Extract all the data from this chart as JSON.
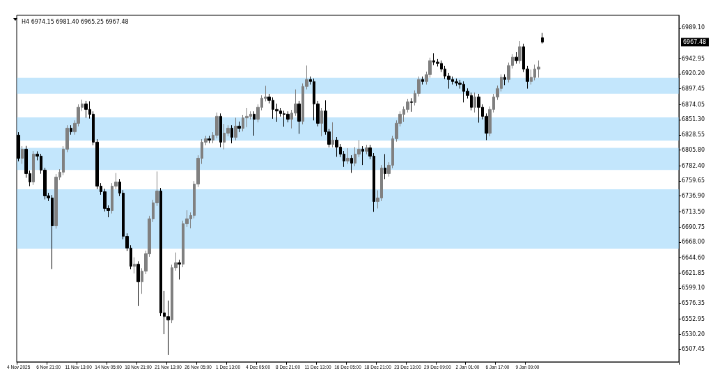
{
  "chart_data": {
    "type": "candlestick",
    "title": "H4 6974.15 6981.40 6965.25 6967.48",
    "categories": [
      "4 Nov 2025",
      null,
      null,
      null,
      null,
      null,
      null,
      null,
      "6 Nov 21:00",
      null,
      null,
      null,
      null,
      null,
      null,
      null,
      "11 Nov 13:00",
      null,
      null,
      null,
      null,
      null,
      null,
      null,
      "14 Nov 05:00",
      null,
      null,
      null,
      null,
      null,
      null,
      null,
      "18 Nov 21:00",
      null,
      null,
      null,
      null,
      null,
      null,
      null,
      "21 Nov 13:00",
      null,
      null,
      null,
      null,
      null,
      null,
      null,
      "26 Nov 05:00",
      null,
      null,
      null,
      null,
      null,
      null,
      null,
      "1 Dec 13:00",
      null,
      null,
      null,
      null,
      null,
      null,
      null,
      "4 Dec 05:00",
      null,
      null,
      null,
      null,
      null,
      null,
      null,
      "8 Dec 21:00",
      null,
      null,
      null,
      null,
      null,
      null,
      null,
      "11 Dec 13:00",
      null,
      null,
      null,
      null,
      null,
      null,
      null,
      "16 Dec 05:00",
      null,
      null,
      null,
      null,
      null,
      null,
      null,
      "18 Dec 21:00",
      null,
      null,
      null,
      null,
      null,
      null,
      null,
      "23 Dec 13:00",
      null,
      null,
      null,
      null,
      null,
      null,
      null,
      "29 Dec 09:00",
      null,
      null,
      null,
      null,
      null,
      null,
      null,
      "2 Jan 01:00",
      null,
      null,
      null,
      null,
      null,
      null,
      null,
      "6 Jan 17:00",
      null,
      null,
      null,
      null,
      null,
      null,
      null,
      "9 Jan 09:00",
      null,
      null,
      null,
      null,
      null,
      null,
      null,
      null,
      null,
      null,
      null,
      null,
      null,
      null,
      null,
      null,
      null,
      null,
      null,
      null,
      null,
      null,
      null,
      null,
      null,
      null,
      null,
      null,
      null,
      null,
      null,
      null,
      null,
      null,
      null,
      null,
      null,
      null,
      null,
      null
    ],
    "ohlc": [
      [
        6828.0,
        6832.5,
        6789.0,
        6793.5
      ],
      [
        6793.5,
        6811.6,
        6785.2,
        6807.1
      ],
      [
        6807.1,
        6812.0,
        6764.3,
        6770.6
      ],
      [
        6770.6,
        6775.1,
        6751.7,
        6758.0
      ],
      [
        6758.0,
        6804.3,
        6753.5,
        6799.8
      ],
      [
        6799.8,
        6803.9,
        6790.4,
        6796.7
      ],
      [
        6796.7,
        6800.2,
        6770.3,
        6775.8
      ],
      [
        6775.8,
        6779.3,
        6731.9,
        6737.2
      ],
      [
        6737.2,
        6741.7,
        6729.5,
        6734.0
      ],
      [
        6734.0,
        6738.5,
        6627.5,
        6692.3
      ],
      [
        6692.3,
        6769.9,
        6688.1,
        6765.4
      ],
      [
        6765.4,
        6777.2,
        6760.9,
        6772.7
      ],
      [
        6772.7,
        6811.6,
        6768.2,
        6807.1
      ],
      [
        6807.1,
        6842.9,
        6802.6,
        6838.4
      ],
      [
        6838.4,
        6842.9,
        6828.7,
        6833.2
      ],
      [
        6833.2,
        6850.3,
        6828.7,
        6845.8
      ],
      [
        6845.8,
        6874.3,
        6841.3,
        6869.8
      ],
      [
        6869.8,
        6881.3,
        6864.3,
        6875.0
      ],
      [
        6875.0,
        6879.5,
        6854.3,
        6866.6
      ],
      [
        6866.6,
        6878.9,
        6852.8,
        6859.3
      ],
      [
        6859.3,
        6863.8,
        6813.1,
        6817.6
      ],
      [
        6817.6,
        6822.1,
        6747.3,
        6751.8
      ],
      [
        6751.8,
        6756.3,
        6738.9,
        6743.4
      ],
      [
        6743.4,
        6747.9,
        6713.9,
        6718.4
      ],
      [
        6718.4,
        6722.9,
        6705.2,
        6715.3
      ],
      [
        6715.3,
        6756.3,
        6710.8,
        6751.8
      ],
      [
        6751.8,
        6771.4,
        6747.3,
        6758.0
      ],
      [
        6758.0,
        6762.5,
        6736.8,
        6741.3
      ],
      [
        6741.3,
        6745.8,
        6672.1,
        6676.6
      ],
      [
        6676.6,
        6681.1,
        6654.4,
        6658.9
      ],
      [
        6658.9,
        6663.4,
        6627.2,
        6631.7
      ],
      [
        6631.7,
        6645.1,
        6621.0,
        6634.8
      ],
      [
        6634.8,
        6639.3,
        6572.2,
        6608.7
      ],
      [
        6608.7,
        6628.9,
        6590.5,
        6624.4
      ],
      [
        6624.4,
        6655.0,
        6619.9,
        6650.5
      ],
      [
        6650.5,
        6707.2,
        6646.0,
        6702.7
      ],
      [
        6702.7,
        6731.2,
        6698.2,
        6726.7
      ],
      [
        6726.7,
        6773.7,
        6722.2,
        6744.5
      ],
      [
        6744.5,
        6749.0,
        6557.3,
        6561.8
      ],
      [
        6561.8,
        6595.0,
        6530.2,
        6556.5
      ],
      [
        6556.5,
        6580.4,
        6499.1,
        6551.3
      ],
      [
        6551.3,
        6634.1,
        6546.8,
        6629.6
      ],
      [
        6629.6,
        6652.4,
        6625.1,
        6636.9
      ],
      [
        6636.9,
        6641.4,
        6612.0,
        6634.8
      ],
      [
        6634.8,
        6699.9,
        6630.3,
        6695.4
      ],
      [
        6695.4,
        6715.6,
        6690.9,
        6702.7
      ],
      [
        6702.7,
        6712.4,
        6688.5,
        6707.9
      ],
      [
        6707.9,
        6759.4,
        6703.4,
        6754.9
      ],
      [
        6754.9,
        6798.0,
        6750.4,
        6793.5
      ],
      [
        6793.5,
        6822.1,
        6785.0,
        6817.6
      ],
      [
        6817.6,
        6827.3,
        6813.1,
        6822.8
      ],
      [
        6822.8,
        6827.3,
        6816.2,
        6820.7
      ],
      [
        6820.7,
        6832.5,
        6816.2,
        6828.0
      ],
      [
        6828.0,
        6862.0,
        6823.5,
        6856.2
      ],
      [
        6856.2,
        6860.7,
        6810.1,
        6817.6
      ],
      [
        6817.6,
        6845.0,
        6806.8,
        6831.1
      ],
      [
        6831.1,
        6842.9,
        6826.6,
        6838.4
      ],
      [
        6838.4,
        6842.9,
        6815.9,
        6824.9
      ],
      [
        6824.9,
        6854.3,
        6820.4,
        6841.6
      ],
      [
        6841.6,
        6848.5,
        6832.6,
        6838.4
      ],
      [
        6838.4,
        6858.6,
        6833.9,
        6854.1
      ],
      [
        6854.1,
        6869.0,
        6840.2,
        6856.2
      ],
      [
        6856.2,
        6863.8,
        6851.7,
        6859.3
      ],
      [
        6859.3,
        6863.8,
        6827.4,
        6852.0
      ],
      [
        6852.0,
        6874.3,
        6847.5,
        6869.8
      ],
      [
        6869.8,
        6887.8,
        6865.3,
        6883.3
      ],
      [
        6883.3,
        6902.0,
        6878.8,
        6885.4
      ],
      [
        6885.4,
        6889.9,
        6875.7,
        6880.2
      ],
      [
        6880.2,
        6884.7,
        6852.5,
        6866.6
      ],
      [
        6866.6,
        6875.4,
        6848.2,
        6864.5
      ],
      [
        6864.5,
        6869.0,
        6855.9,
        6860.4
      ],
      [
        6860.4,
        6864.9,
        6840.9,
        6859.3
      ],
      [
        6859.3,
        6863.8,
        6847.5,
        6852.0
      ],
      [
        6852.0,
        6865.9,
        6838.2,
        6861.4
      ],
      [
        6861.4,
        6896.6,
        6856.9,
        6875.0
      ],
      [
        6875.0,
        6879.5,
        6830.2,
        6848.9
      ],
      [
        6848.9,
        6905.6,
        6844.4,
        6901.1
      ],
      [
        6901.1,
        6932.4,
        6896.6,
        6911.5
      ],
      [
        6911.5,
        6916.0,
        6903.9,
        6908.4
      ],
      [
        6908.4,
        6912.9,
        6850.2,
        6875.0
      ],
      [
        6875.0,
        6879.5,
        6841.3,
        6845.8
      ],
      [
        6845.8,
        6869.0,
        6826.6,
        6864.5
      ],
      [
        6864.5,
        6880.2,
        6828.7,
        6833.2
      ],
      [
        6833.2,
        6837.7,
        6809.9,
        6814.4
      ],
      [
        6814.4,
        6847.5,
        6809.9,
        6820.7
      ],
      [
        6820.7,
        6825.2,
        6795.7,
        6810.3
      ],
      [
        6810.3,
        6814.8,
        6795.3,
        6799.8
      ],
      [
        6799.8,
        6804.3,
        6780.6,
        6789.4
      ],
      [
        6789.4,
        6808.6,
        6784.9,
        6793.5
      ],
      [
        6793.5,
        6798.0,
        6771.6,
        6786.2
      ],
      [
        6786.2,
        6810.3,
        6781.7,
        6799.8
      ],
      [
        6799.8,
        6820.7,
        6795.3,
        6807.1
      ],
      [
        6807.1,
        6811.6,
        6783.4,
        6804.0
      ],
      [
        6804.0,
        6813.7,
        6799.5,
        6809.2
      ],
      [
        6809.2,
        6813.7,
        6792.2,
        6796.7
      ],
      [
        6796.7,
        6801.2,
        6713.2,
        6728.8
      ],
      [
        6728.8,
        6745.5,
        6718.4,
        6734.0
      ],
      [
        6734.0,
        6783.4,
        6729.5,
        6778.9
      ],
      [
        6778.9,
        6799.8,
        6762.3,
        6770.6
      ],
      [
        6770.6,
        6787.6,
        6766.1,
        6783.1
      ],
      [
        6783.1,
        6827.3,
        6778.6,
        6822.8
      ],
      [
        6822.8,
        6850.3,
        6818.3,
        6845.8
      ],
      [
        6845.8,
        6863.8,
        6841.3,
        6859.3
      ],
      [
        6859.3,
        6871.1,
        6848.2,
        6866.6
      ],
      [
        6866.6,
        6882.6,
        6862.1,
        6878.1
      ],
      [
        6878.1,
        6883.3,
        6863.0,
        6877.1
      ],
      [
        6877.1,
        6895.1,
        6872.6,
        6890.6
      ],
      [
        6890.6,
        6916.0,
        6886.1,
        6911.5
      ],
      [
        6911.5,
        6916.0,
        6903.9,
        6908.4
      ],
      [
        6908.4,
        6923.3,
        6903.9,
        6918.8
      ],
      [
        6918.8,
        6944.2,
        6914.3,
        6939.7
      ],
      [
        6939.7,
        6950.9,
        6933.1,
        6937.6
      ],
      [
        6937.6,
        6942.1,
        6931.0,
        6935.5
      ],
      [
        6935.5,
        6940.0,
        6922.7,
        6927.2
      ],
      [
        6927.2,
        6931.7,
        6912.2,
        6916.7
      ],
      [
        6916.7,
        6921.2,
        6897.7,
        6911.5
      ],
      [
        6911.5,
        6916.0,
        6903.9,
        6908.4
      ],
      [
        6908.4,
        6912.9,
        6901.8,
        6906.3
      ],
      [
        6906.3,
        6910.8,
        6897.7,
        6904.2
      ],
      [
        6904.2,
        6908.7,
        6877.1,
        6893.8
      ],
      [
        6893.8,
        6898.3,
        6883.0,
        6887.5
      ],
      [
        6887.5,
        6892.0,
        6865.3,
        6869.8
      ],
      [
        6869.8,
        6892.0,
        6862.1,
        6885.4
      ],
      [
        6885.4,
        6889.9,
        6846.8,
        6869.8
      ],
      [
        6869.8,
        6874.3,
        6851.7,
        6856.2
      ],
      [
        6856.2,
        6860.7,
        6820.7,
        6831.1
      ],
      [
        6831.1,
        6871.1,
        6826.6,
        6866.6
      ],
      [
        6866.6,
        6889.9,
        6862.1,
        6885.4
      ],
      [
        6885.4,
        6902.5,
        6880.9,
        6898.0
      ],
      [
        6898.0,
        6919.2,
        6893.5,
        6914.7
      ],
      [
        6914.7,
        6919.2,
        6903.0,
        6911.5
      ],
      [
        6911.5,
        6936.9,
        6907.0,
        6932.4
      ],
      [
        6932.4,
        6949.4,
        6927.9,
        6944.9
      ],
      [
        6944.9,
        6952.4,
        6935.2,
        6939.7
      ],
      [
        6939.7,
        6969.0,
        6935.2,
        6960.6
      ],
      [
        6960.6,
        6965.1,
        6922.7,
        6927.2
      ],
      [
        6927.2,
        6931.7,
        6897.7,
        6908.4
      ],
      [
        6908.4,
        6926.5,
        6903.9,
        6914.7
      ],
      [
        6914.7,
        6933.9,
        6910.2,
        6927.2
      ],
      [
        6927.2,
        6940.0,
        6914.3,
        6930.3
      ],
      [
        6974.15,
        6981.4,
        6965.25,
        6967.48
      ],
      null,
      null,
      null,
      null,
      null,
      null,
      null,
      null,
      null,
      null,
      null,
      null,
      null,
      null,
      null,
      null,
      null,
      null,
      null,
      null,
      null,
      null,
      null,
      null,
      null,
      null,
      null,
      null,
      null,
      null,
      null,
      null,
      null,
      null,
      null,
      null
    ],
    "bands": [
      {
        "axis": "y",
        "from": 6658,
        "to": 6747,
        "color": "#87cefa"
      },
      {
        "axis": "y",
        "from": 6890,
        "to": 6914,
        "color": "#87cefa"
      },
      {
        "axis": "y",
        "from": 6820,
        "to": 6855,
        "color": "#87cefa"
      },
      {
        "axis": "y",
        "from": 6776,
        "to": 6809,
        "color": "#87cefa"
      }
    ],
    "ylim": [
      6488.6,
      7007.6
    ],
    "yticks": [
      {
        "value": 6507.45,
        "label": "6507.45"
      },
      {
        "value": 6530.2,
        "label": "6530.20"
      },
      {
        "value": 6552.95,
        "label": "6552.95"
      },
      {
        "value": 6576.35,
        "label": "6576.35"
      },
      {
        "value": 6599.1,
        "label": "6599.10"
      },
      {
        "value": 6621.85,
        "label": "6621.85"
      },
      {
        "value": 6644.6,
        "label": "6644.60"
      },
      {
        "value": 6668,
        "label": "6668.00"
      },
      {
        "value": 6690.75,
        "label": "6690.75"
      },
      {
        "value": 6713.5,
        "label": "6713.50"
      },
      {
        "value": 6736.9,
        "label": "6736.90"
      },
      {
        "value": 6759.65,
        "label": "6759.65"
      },
      {
        "value": 6782.4,
        "label": "6782.40"
      },
      {
        "value": 6805.8,
        "label": "6805.80"
      },
      {
        "value": 6828.55,
        "label": "6828.55"
      },
      {
        "value": 6851.3,
        "label": "6851.30"
      },
      {
        "value": 6874.05,
        "label": "6874.05"
      },
      {
        "value": 6897.45,
        "label": "6897.45"
      },
      {
        "value": 6920.2,
        "label": "6920.20"
      },
      {
        "value": 6942.95,
        "label": "6942.95"
      },
      {
        "value": 6989.1,
        "label": "6989.10"
      }
    ],
    "annotations": [
      {
        "text": "6967.48",
        "y": 6967.48
      }
    ]
  }
}
